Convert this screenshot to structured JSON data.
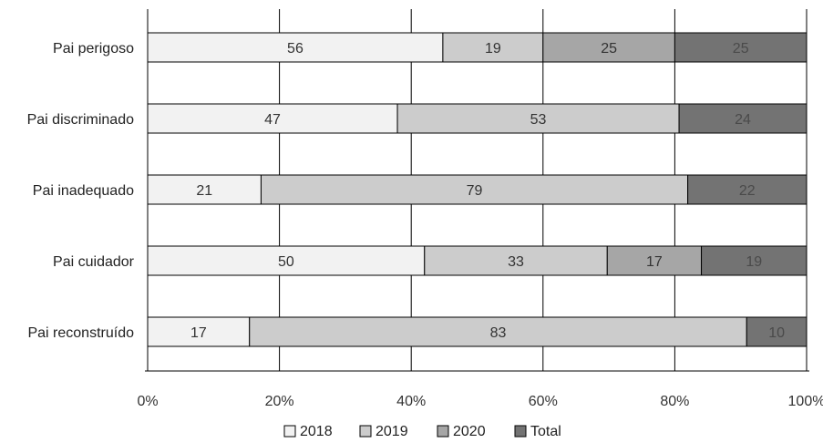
{
  "chart_data": {
    "type": "bar",
    "orientation": "horizontal",
    "stacked": "percent",
    "categories": [
      "Pai perigoso",
      "Pai discriminado",
      "Pai inadequado",
      "Pai cuidador",
      "Pai reconstruído"
    ],
    "series": [
      {
        "name": "2018",
        "values": [
          56,
          47,
          21,
          50,
          17
        ]
      },
      {
        "name": "2019",
        "values": [
          19,
          53,
          79,
          33,
          83
        ]
      },
      {
        "name": "2020",
        "values": [
          25,
          0,
          0,
          17,
          0
        ]
      },
      {
        "name": "Total",
        "values": [
          25,
          24,
          22,
          19,
          10
        ]
      }
    ],
    "x_ticks": [
      "0%",
      "20%",
      "40%",
      "60%",
      "80%",
      "100%"
    ],
    "xlim": [
      0,
      100
    ],
    "grid": true,
    "legend_position": "bottom",
    "colors": {
      "2018": "#f2f2f2",
      "2019": "#cccccc",
      "2020": "#a6a6a6",
      "Total": "#737373",
      "grid": "#000000"
    }
  }
}
